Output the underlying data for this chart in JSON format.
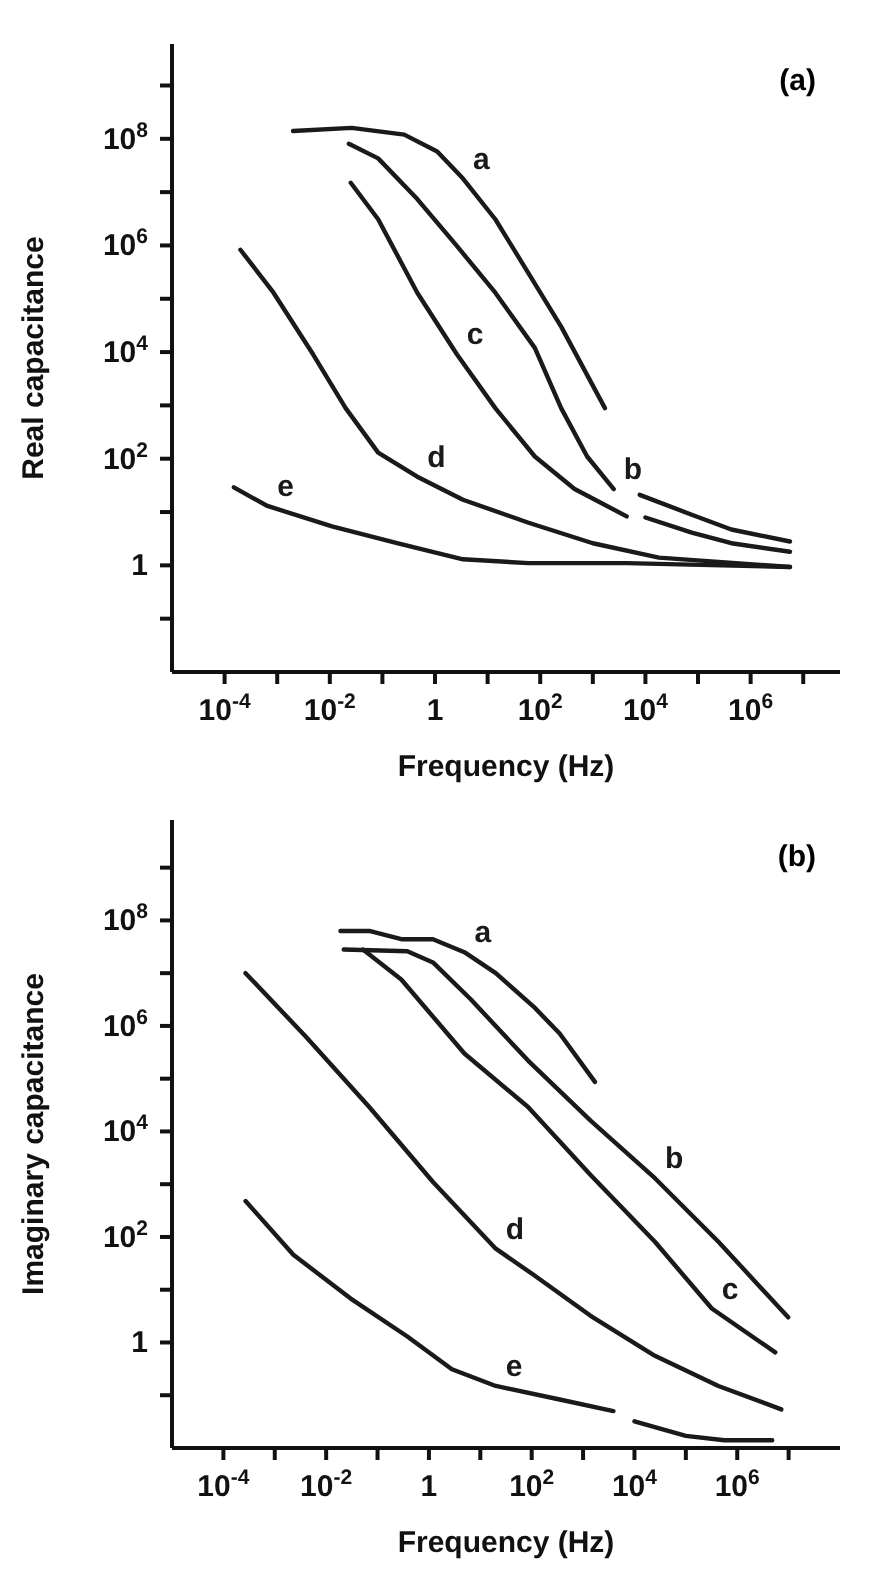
{
  "chart_data": [
    {
      "type": "line",
      "xlabel": "Frequency (Hz)",
      "ylabel": "Real capacitance",
      "xlim": [
        1e-05,
        50000000
      ],
      "ylim": [
        0.01,
        6000000000
      ],
      "xticks": [
        {
          "value": 0.0001,
          "label": "10$^{-4}$"
        },
        {
          "value": 0.001,
          "label": null
        },
        {
          "value": 0.01,
          "label": "10$^{-2}$"
        },
        {
          "value": 0.1,
          "label": null
        },
        1,
        {
          "value": 10,
          "label": null
        },
        {
          "value": 100,
          "label": "10$^{2}$"
        },
        {
          "value": 1000,
          "label": null
        },
        {
          "value": 10000,
          "label": "10$^{4}$"
        },
        {
          "value": 100000,
          "label": null
        },
        {
          "value": 1000000,
          "label": "10$^{6}$"
        },
        {
          "value": 10000000,
          "label": null
        }
      ],
      "yticks": [
        {
          "value": 0.1,
          "label": null
        },
        1,
        {
          "value": 10,
          "label": null
        },
        {
          "value": 100,
          "label": "10$^{2}$"
        },
        {
          "value": 1000,
          "label": null
        },
        {
          "value": 10000,
          "label": "10$^{4}$"
        },
        {
          "value": 100000,
          "label": null
        },
        {
          "value": 1000000,
          "label": "10$^{6}$"
        },
        {
          "value": 10000000,
          "label": null
        },
        {
          "value": 100000000,
          "label": "10$^{8}$"
        },
        {
          "value": 1000000000,
          "label": null
        }
      ],
      "log": "xy",
      "series": [
        {
          "name": "a",
          "color": "#1a1a1a",
          "x": [
            0.002,
            0.026,
            0.26,
            1.1,
            3.4,
            14,
            60,
            250,
            1700
          ],
          "values": [
            140000000.0,
            160000000.0,
            120000000.0,
            58000000.0,
            18000000.0,
            3100000.0,
            300000.0,
            30000.0,
            890
          ]
        },
        {
          "name": "b",
          "color": "#1a1a1a",
          "x": [
            0.023,
            0.083,
            0.46,
            2.6,
            14,
            79,
            250,
            780,
            2500,
            4000,
            7800,
            76000,
            430000,
            5600000
          ],
          "values": [
            81000000.0,
            43000000.0,
            7400000.0,
            980000.0,
            130000.0,
            12000,
            890,
            110,
            27,
            null,
            21,
            8.9,
            4.7,
            2.8
          ]
        },
        {
          "name": "c",
          "color": "#1a1a1a",
          "x": [
            0.025,
            0.083,
            0.46,
            2.6,
            14,
            79,
            450,
            4400,
            6300,
            10000,
            76000,
            430000,
            5600000
          ],
          "values": [
            15000000.0,
            3100000.0,
            130000.0,
            9100,
            890,
            110,
            27,
            8.3,
            null,
            7.9,
            4.1,
            2.6,
            1.8
          ]
        },
        {
          "name": "d",
          "color": "#1a1a1a",
          "x": [
            0.0002,
            0.00085,
            0.0048,
            0.02,
            0.083,
            0.46,
            3.4,
            60,
            1000,
            18000,
            5600000
          ],
          "values": [
            830000.0,
            130000.0,
            9100,
            890,
            130,
            46,
            17,
            6.3,
            2.6,
            1.4,
            0.93
          ]
        },
        {
          "name": "e",
          "color": "#1a1a1a",
          "x": [
            0.00015,
            0.00065,
            0.011,
            0.19,
            3.4,
            60,
            4400,
            5600000
          ],
          "values": [
            29,
            13,
            5.4,
            2.6,
            1.3,
            1.1,
            1.1,
            0.93
          ]
        }
      ],
      "annotations": [
        "(a)"
      ]
    },
    {
      "type": "line",
      "xlabel": "Frequency (Hz)",
      "ylabel": "Imaginary capacitance",
      "xlim": [
        1e-05,
        100000000
      ],
      "ylim": [
        0.01,
        8000000000
      ],
      "xticks": [
        {
          "value": 0.0001,
          "label": "10$^{-4}$"
        },
        {
          "value": 0.001,
          "label": null
        },
        {
          "value": 0.01,
          "label": "10$^{-2}$"
        },
        {
          "value": 0.1,
          "label": null
        },
        1,
        {
          "value": 10,
          "label": null
        },
        {
          "value": 100,
          "label": "10$^{2}$"
        },
        {
          "value": 1000,
          "label": null
        },
        {
          "value": 10000,
          "label": "10$^{4}$"
        },
        {
          "value": 100000,
          "label": null
        },
        {
          "value": 1000000,
          "label": "10$^{6}$"
        },
        {
          "value": 10000000,
          "label": null
        }
      ],
      "yticks": [
        {
          "value": 0.1,
          "label": null
        },
        1,
        {
          "value": 10,
          "label": null
        },
        {
          "value": 100,
          "label": "10$^{2}$"
        },
        {
          "value": 1000,
          "label": null
        },
        {
          "value": 10000,
          "label": "10$^{4}$"
        },
        {
          "value": 100000,
          "label": null
        },
        {
          "value": 1000000,
          "label": "10$^{6}$"
        },
        {
          "value": 10000000,
          "label": null
        },
        {
          "value": 100000000,
          "label": "10$^{8}$"
        },
        {
          "value": 1000000000,
          "label": null
        }
      ],
      "log": "xy",
      "series": [
        {
          "name": "a",
          "color": "#1a1a1a",
          "x": [
            0.019,
            0.069,
            0.29,
            1.2,
            4.9,
            20,
            110,
            350,
            1700
          ],
          "values": [
            63000000.0,
            63000000.0,
            44000000.0,
            44000000.0,
            25000000.0,
            10000000.0,
            2300000.0,
            720000.0,
            87000
          ]
        },
        {
          "name": "b",
          "color": "#1a1a1a",
          "x": [
            0.022,
            0.38,
            1.2,
            6.5,
            85,
            1400,
            25000,
            430000,
            9800000
          ],
          "values": [
            28000000.0,
            26000000.0,
            16000000.0,
            3200000.0,
            220000.0,
            16000,
            1300,
            81,
            3.0
          ]
        },
        {
          "name": "c",
          "color": "#1a1a1a",
          "x": [
            0.052,
            0.29,
            4.9,
            85,
            1400,
            25000,
            320000,
            5500000
          ],
          "values": [
            28000000.0,
            7600000.0,
            300000.0,
            29000,
            1500,
            81,
            4.4,
            0.65
          ]
        },
        {
          "name": "d",
          "color": "#1a1a1a",
          "x": [
            0.00027,
            0.004,
            0.069,
            1.2,
            20,
            110,
            1400,
            25000,
            430000,
            7200000
          ],
          "values": [
            10000000.0,
            630000.0,
            29000,
            1100,
            60,
            19,
            3.2,
            0.56,
            0.15,
            0.054
          ]
        },
        {
          "name": "e",
          "color": "#1a1a1a",
          "x": [
            0.00027,
            0.0023,
            0.03,
            0.38,
            2.8,
            20,
            350,
            3900,
            6300,
            10000,
            100000,
            560000,
            4800000
          ],
          "values": [
            480,
            46,
            6.8,
            1.3,
            0.31,
            0.15,
            0.083,
            0.05,
            null,
            0.032,
            0.017,
            0.014,
            0.014
          ]
        }
      ],
      "annotations": [
        "(b)"
      ]
    }
  ]
}
